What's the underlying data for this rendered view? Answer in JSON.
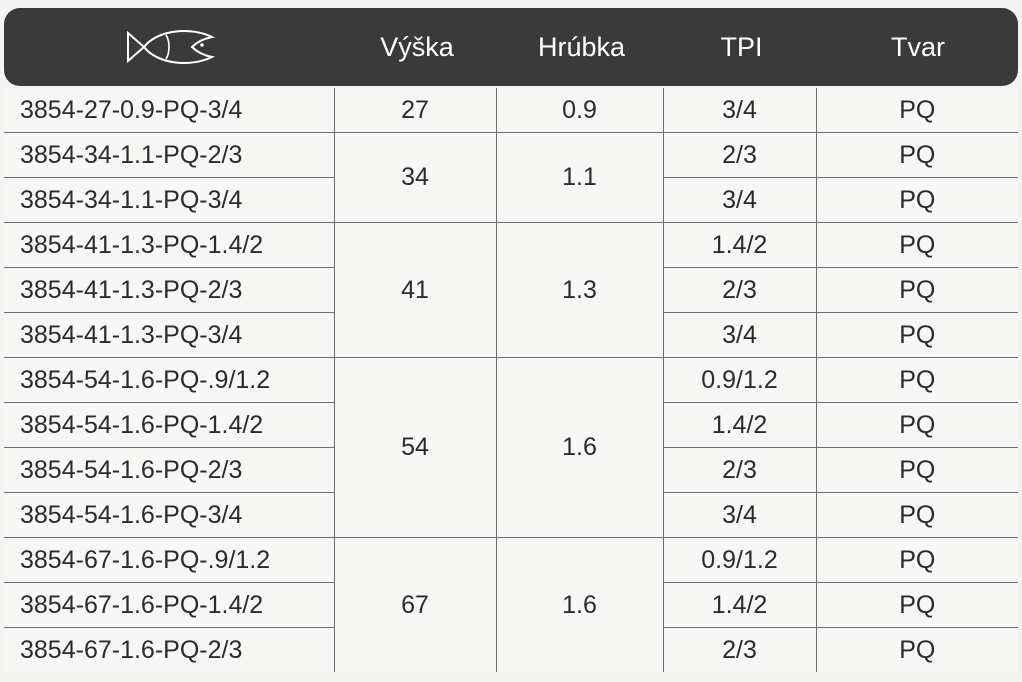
{
  "header": {
    "columns": [
      "Výška",
      "Hrúbka",
      "TPI",
      "Tvar"
    ]
  },
  "rows": [
    {
      "code": "3854-27-0.9-PQ-3/4",
      "vyska": "27",
      "hrubka": "0.9",
      "tpi": "3/4",
      "tvar": "PQ"
    },
    {
      "code": "3854-34-1.1-PQ-2/3",
      "vyska": "34",
      "hrubka": "1.1",
      "tpi": "2/3",
      "tvar": "PQ"
    },
    {
      "code": "3854-34-1.1-PQ-3/4",
      "tpi": "3/4",
      "tvar": "PQ"
    },
    {
      "code": "3854-41-1.3-PQ-1.4/2",
      "vyska": "41",
      "hrubka": "1.3",
      "tpi": "1.4/2",
      "tvar": "PQ"
    },
    {
      "code": "3854-41-1.3-PQ-2/3",
      "tpi": "2/3",
      "tvar": "PQ"
    },
    {
      "code": "3854-41-1.3-PQ-3/4",
      "tpi": "3/4",
      "tvar": "PQ"
    },
    {
      "code": "3854-54-1.6-PQ-.9/1.2",
      "vyska": "54",
      "hrubka": "1.6",
      "tpi": "0.9/1.2",
      "tvar": "PQ"
    },
    {
      "code": "3854-54-1.6-PQ-1.4/2",
      "tpi": "1.4/2",
      "tvar": "PQ"
    },
    {
      "code": "3854-54-1.6-PQ-2/3",
      "tpi": "2/3",
      "tvar": "PQ"
    },
    {
      "code": "3854-54-1.6-PQ-3/4",
      "tpi": "3/4",
      "tvar": "PQ"
    },
    {
      "code": "3854-67-1.6-PQ-.9/1.2",
      "vyska": "67",
      "hrubka": "1.6",
      "tpi": "0.9/1.2",
      "tvar": "PQ"
    },
    {
      "code": "3854-67-1.6-PQ-1.4/2",
      "tpi": "1.4/2",
      "tvar": "PQ"
    },
    {
      "code": "3854-67-1.6-PQ-2/3",
      "tpi": "2/3",
      "tvar": "PQ"
    }
  ],
  "icon": "fish-icon"
}
